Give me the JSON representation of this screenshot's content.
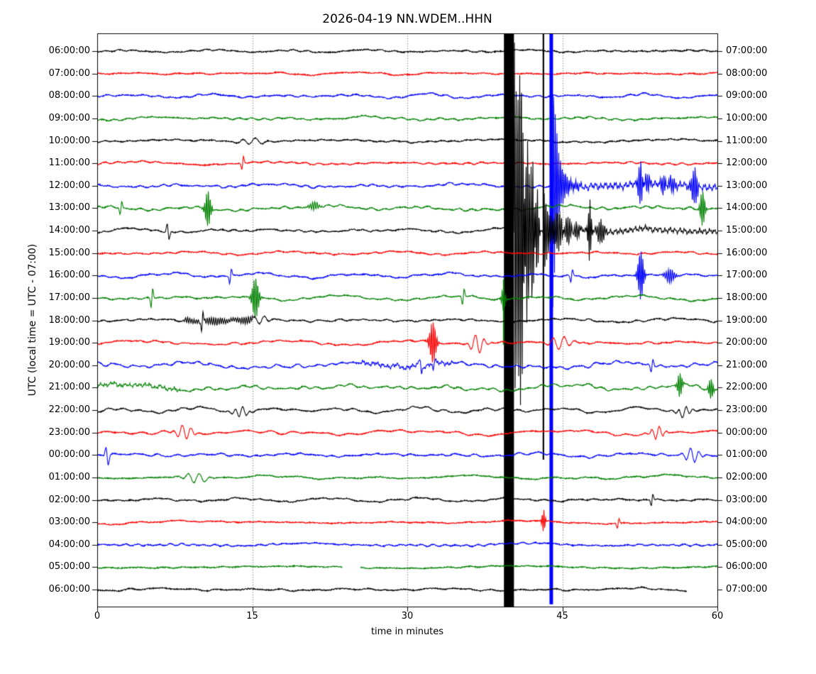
{
  "title": "2026-04-19 NN.WDEM..HHN",
  "date": "2026-04-19",
  "station": "NN.WDEM..HHN",
  "y_axis_label": "UTC (local time = UTC - 07:00)",
  "x_axis_label": "time in minutes",
  "chart_data": {
    "type": "line",
    "subtype": "seismogram-dayplot",
    "title": "2026-04-19 NN.WDEM..HHN",
    "xlabel": "time in minutes",
    "ylabel": "UTC (local time = UTC - 07:00)",
    "xlim": [
      0,
      60
    ],
    "x_ticks": [
      0,
      15,
      30,
      45,
      60
    ],
    "grid_minutes": [
      15,
      30,
      45
    ],
    "grid_style": "dotted-vertical",
    "trace_color_cycle": [
      "#000000",
      "#ff0000",
      "#0000ff",
      "#008000"
    ],
    "rows": [
      {
        "label_left": "06:00:00",
        "label_right": "07:00:00",
        "color": "#000000",
        "noise_amp": 1.8,
        "events": []
      },
      {
        "label_left": "07:00:00",
        "label_right": "08:00:00",
        "color": "#ff0000",
        "noise_amp": 1.8,
        "events": []
      },
      {
        "label_left": "08:00:00",
        "label_right": "09:00:00",
        "color": "#0000ff",
        "noise_amp": 2.6,
        "events": []
      },
      {
        "label_left": "09:00:00",
        "label_right": "10:00:00",
        "color": "#008000",
        "noise_amp": 2.6,
        "events": []
      },
      {
        "label_left": "10:00:00",
        "label_right": "11:00:00",
        "color": "#000000",
        "noise_amp": 2.6,
        "events": [
          {
            "type": "packet",
            "min": 15.0,
            "amp": 5,
            "width": 1.6,
            "freq": 0.35
          }
        ]
      },
      {
        "label_left": "11:00:00",
        "label_right": "12:00:00",
        "color": "#ff0000",
        "noise_amp": 2.2,
        "events": [
          {
            "type": "spike",
            "min": 14.07,
            "amp": 9,
            "width": 0.12
          }
        ]
      },
      {
        "label_left": "12:00:00",
        "label_right": "13:00:00",
        "color": "#0000ff",
        "noise_amp": 3.2,
        "events": [
          {
            "type": "clip_spike",
            "min": 43.93,
            "up": 600,
            "down": 590,
            "lw": 5
          },
          {
            "type": "burst",
            "min": 43.95,
            "amp": 210,
            "decay": 0.6
          },
          {
            "type": "elevated",
            "start": 44.5,
            "end": 60,
            "amp": 5
          },
          {
            "type": "packet",
            "min": 52.55,
            "amp": 34,
            "width": 0.25,
            "freq": 2.4
          },
          {
            "type": "packet",
            "min": 53.2,
            "amp": 12,
            "width": 0.3,
            "freq": 2.4
          },
          {
            "type": "packet",
            "min": 54.78,
            "amp": 16,
            "width": 0.3,
            "freq": 2.4
          },
          {
            "type": "packet",
            "min": 55.6,
            "amp": 9,
            "width": 0.4,
            "freq": 2.4
          },
          {
            "type": "packet",
            "min": 57.8,
            "amp": 28,
            "width": 0.35,
            "freq": 2.4
          }
        ]
      },
      {
        "label_left": "13:00:00",
        "label_right": "14:00:00",
        "color": "#008000",
        "noise_amp": 3.8,
        "events": [
          {
            "type": "spike",
            "min": 2.3,
            "amp": 9,
            "width": 0.12
          },
          {
            "type": "packet",
            "min": 10.71,
            "amp": 26,
            "width": 0.3,
            "freq": 2.4
          },
          {
            "type": "packet",
            "min": 21.0,
            "amp": 6,
            "width": 0.5,
            "freq": 2.0
          },
          {
            "type": "packet",
            "min": 58.56,
            "amp": 26,
            "width": 0.25,
            "freq": 2.4
          }
        ]
      },
      {
        "label_left": "14:00:00",
        "label_right": "15:00:00",
        "color": "#000000",
        "noise_amp": 2.8,
        "events": [
          {
            "type": "spike",
            "min": 6.86,
            "amp": -11,
            "width": 0.14
          },
          {
            "type": "clip_band",
            "start": 39.35,
            "end": 40.32
          },
          {
            "type": "burst",
            "min": 40.32,
            "amp": 290,
            "decay": 0.55
          },
          {
            "type": "packet",
            "min": 41.0,
            "amp": 190,
            "width": 0.3,
            "freq": 2.6
          },
          {
            "type": "packet",
            "min": 41.6,
            "amp": 140,
            "width": 0.25,
            "freq": 2.6
          },
          {
            "type": "packet",
            "min": 42.1,
            "amp": 110,
            "width": 0.2,
            "freq": 2.6
          },
          {
            "type": "packet",
            "min": 42.55,
            "amp": 70,
            "width": 0.2,
            "freq": 2.6
          },
          {
            "type": "clip_spike",
            "min": 43.17,
            "up": 600,
            "down": 323,
            "lw": 2.2
          },
          {
            "type": "burst",
            "min": 43.2,
            "amp": 60,
            "decay": 0.8
          },
          {
            "type": "packet",
            "min": 44.7,
            "amp": 22,
            "width": 0.5,
            "freq": 2.4
          },
          {
            "type": "packet",
            "min": 45.5,
            "amp": 18,
            "width": 0.5,
            "freq": 2.4
          },
          {
            "type": "packet",
            "min": 46.3,
            "amp": 14,
            "width": 0.4,
            "freq": 2.4
          },
          {
            "type": "packet",
            "min": 47.64,
            "amp": 46,
            "width": 0.18,
            "freq": 2.8
          },
          {
            "type": "packet",
            "min": 48.7,
            "amp": 16,
            "width": 0.4,
            "freq": 2.4
          },
          {
            "type": "elevated",
            "start": 43.5,
            "end": 60,
            "amp": 4
          }
        ]
      },
      {
        "label_left": "15:00:00",
        "label_right": "16:00:00",
        "color": "#ff0000",
        "noise_amp": 2.6,
        "events": []
      },
      {
        "label_left": "16:00:00",
        "label_right": "17:00:00",
        "color": "#0000ff",
        "noise_amp": 3.0,
        "events": [
          {
            "type": "spike",
            "min": 12.9,
            "amp": 10,
            "width": 0.12
          },
          {
            "type": "spike",
            "min": 45.9,
            "amp": 9,
            "width": 0.12
          },
          {
            "type": "packet",
            "min": 52.59,
            "amp": 36,
            "width": 0.3,
            "freq": 2.6
          },
          {
            "type": "packet",
            "min": 55.4,
            "amp": 10,
            "width": 0.5,
            "freq": 2.2
          }
        ]
      },
      {
        "label_left": "17:00:00",
        "label_right": "18:00:00",
        "color": "#008000",
        "noise_amp": 3.4,
        "events": [
          {
            "type": "spike",
            "min": 5.29,
            "amp": 13,
            "width": 0.12
          },
          {
            "type": "packet",
            "min": 15.31,
            "amp": 30,
            "width": 0.35,
            "freq": 2.4
          },
          {
            "type": "spike",
            "min": 35.42,
            "amp": 11,
            "width": 0.12
          },
          {
            "type": "packet",
            "min": 39.3,
            "amp": 18,
            "width": 0.2,
            "freq": 2.6
          },
          {
            "type": "clip_spike",
            "min": 39.32,
            "up": 26,
            "down": 66,
            "lw": 1.8
          }
        ]
      },
      {
        "label_left": "18:00:00",
        "label_right": "19:00:00",
        "color": "#000000",
        "noise_amp": 2.6,
        "events": [
          {
            "type": "tremor",
            "start": 8.2,
            "end": 15.3,
            "amp": 5
          },
          {
            "type": "spike",
            "min": 10.16,
            "amp": 12,
            "width": 0.12
          },
          {
            "type": "packet",
            "min": 15.9,
            "amp": 7,
            "width": 0.8,
            "freq": 0.4
          }
        ]
      },
      {
        "label_left": "19:00:00",
        "label_right": "20:00:00",
        "color": "#ff0000",
        "noise_amp": 3.2,
        "events": [
          {
            "type": "packet",
            "min": 32.47,
            "amp": 30,
            "width": 0.35,
            "freq": 2.4
          },
          {
            "type": "packet",
            "min": 36.8,
            "amp": -13,
            "width": 0.8,
            "freq": 0.5
          },
          {
            "type": "packet",
            "min": 44.9,
            "amp": 9,
            "width": 1.2,
            "freq": 0.4
          }
        ]
      },
      {
        "label_left": "20:00:00",
        "label_right": "21:00:00",
        "color": "#0000ff",
        "noise_amp": 4.6,
        "events": [
          {
            "type": "elevated",
            "start": 25.5,
            "end": 34.5,
            "amp": 3
          },
          {
            "type": "spike",
            "min": 31.3,
            "amp": -10,
            "width": 0.14
          },
          {
            "type": "spike",
            "min": 32.6,
            "amp": 8,
            "width": 0.14
          },
          {
            "type": "spike",
            "min": 53.68,
            "amp": 9,
            "width": 0.14
          }
        ]
      },
      {
        "label_left": "21:00:00",
        "label_right": "22:00:00",
        "color": "#008000",
        "noise_amp": 5.0,
        "events": [
          {
            "type": "elevated",
            "start": 0,
            "end": 8,
            "amp": 2.5
          },
          {
            "type": "packet",
            "min": 56.36,
            "amp": 18,
            "width": 0.25,
            "freq": 2.4
          },
          {
            "type": "packet",
            "min": 59.38,
            "amp": 15,
            "width": 0.25,
            "freq": 2.4
          }
        ]
      },
      {
        "label_left": "22:00:00",
        "label_right": "23:00:00",
        "color": "#000000",
        "noise_amp": 3.4,
        "events": [
          {
            "type": "packet",
            "min": 13.9,
            "amp": 7,
            "width": 0.8,
            "freq": 0.6
          },
          {
            "type": "packet",
            "min": 56.8,
            "amp": 7,
            "width": 0.8,
            "freq": 0.6
          }
        ]
      },
      {
        "label_left": "23:00:00",
        "label_right": "00:00:00",
        "color": "#ff0000",
        "noise_amp": 3.4,
        "events": [
          {
            "type": "packet",
            "min": 8.44,
            "amp": -10,
            "width": 0.9,
            "freq": 0.5
          },
          {
            "type": "packet",
            "min": 54.2,
            "amp": 9,
            "width": 0.7,
            "freq": 0.6
          }
        ]
      },
      {
        "label_left": "00:00:00",
        "label_right": "01:00:00",
        "color": "#0000ff",
        "noise_amp": 3.4,
        "events": [
          {
            "type": "spike",
            "min": 0.96,
            "amp": -13,
            "width": 0.16
          },
          {
            "type": "packet",
            "min": 57.6,
            "amp": -11,
            "width": 0.8,
            "freq": 0.5
          }
        ]
      },
      {
        "label_left": "01:00:00",
        "label_right": "02:00:00",
        "color": "#008000",
        "noise_amp": 3.0,
        "events": [
          {
            "type": "packet",
            "min": 9.6,
            "amp": 7,
            "width": 1.2,
            "freq": 0.4
          }
        ]
      },
      {
        "label_left": "02:00:00",
        "label_right": "03:00:00",
        "color": "#000000",
        "noise_amp": 2.6,
        "events": [
          {
            "type": "spike",
            "min": 53.68,
            "amp": 8,
            "width": 0.12
          }
        ]
      },
      {
        "label_left": "03:00:00",
        "label_right": "04:00:00",
        "color": "#ff0000",
        "noise_amp": 2.2,
        "events": [
          {
            "type": "packet",
            "min": 43.18,
            "amp": 16,
            "width": 0.18,
            "freq": 2.6
          },
          {
            "type": "spike",
            "min": 50.4,
            "amp": 7,
            "width": 0.12
          }
        ]
      },
      {
        "label_left": "04:00:00",
        "label_right": "05:00:00",
        "color": "#0000ff",
        "noise_amp": 2.2,
        "events": []
      },
      {
        "label_left": "05:00:00",
        "label_right": "06:00:00",
        "color": "#008000",
        "noise_amp": 1.6,
        "events": [
          {
            "type": "gap",
            "start": 23.75,
            "end": 25.45
          }
        ]
      },
      {
        "label_left": "06:00:00",
        "label_right": "07:00:00",
        "color": "#000000",
        "noise_amp": 2.2,
        "events": [
          {
            "type": "truncate",
            "min": 57.05
          }
        ]
      }
    ]
  }
}
